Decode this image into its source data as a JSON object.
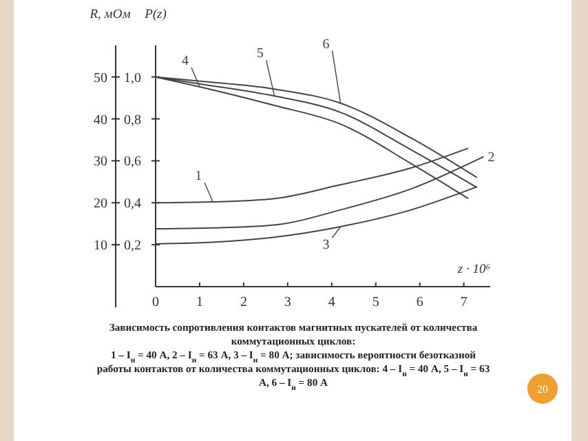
{
  "chart_data": {
    "type": "line",
    "title": "Зависимость сопротивления контактов магнитных пускателей от количества коммутационных циклов:",
    "annotations": [
      "1 – I$_{н}$ = 40 А, 2 – I$_{н}$ = 63 А, 3 – I$_{н}$ = 80 А; зависимость вероятности безотказной работы контактов от количества коммутационных циклов: 4 – I$_{н}$ = 40 А, 5 – I$_{н}$ = 63 А, 6 – I$_{н}$ = 80 А",
      "20"
    ],
    "xlabel": "z · 10⁶",
    "ylabel": "P(z)",
    "y2label": "R, мОм",
    "xlim": [
      0,
      7.6
    ],
    "xticks": [
      0,
      1,
      2,
      3,
      4,
      5,
      6,
      7
    ],
    "ylim": [
      0,
      1.15
    ],
    "yticks": [
      {
        "value": 0.2,
        "label": "0,2"
      },
      {
        "value": 0.4,
        "label": "0,4"
      },
      {
        "value": 0.6,
        "label": "0,6"
      },
      {
        "value": 0.8,
        "label": "0,8"
      },
      {
        "value": 1.0,
        "label": "1,0"
      }
    ],
    "y2lim": [
      0,
      57.5
    ],
    "y2ticks": [
      10,
      20,
      30,
      40,
      50
    ],
    "grid": false,
    "marker": "none",
    "line_style": "solid",
    "series": [
      {
        "name": "1",
        "color": "#444444",
        "axis": "y2",
        "x": [
          0,
          1.3,
          2.7,
          4.2,
          5.8,
          7.1
        ],
        "values": [
          20,
          20.2,
          21,
          24.3,
          28.3,
          33
        ]
      },
      {
        "name": "2",
        "color": "#444444",
        "axis": "y2",
        "x": [
          0,
          1.3,
          2.7,
          4.2,
          5.8,
          7.45
        ],
        "values": [
          13.8,
          14,
          14.7,
          18.3,
          23.3,
          31
        ]
      },
      {
        "name": "3",
        "color": "#444444",
        "axis": "y2",
        "x": [
          0,
          1.3,
          2.7,
          4.2,
          5.8,
          7.3
        ],
        "values": [
          10.2,
          10.6,
          11.8,
          14.3,
          18.3,
          23.8
        ]
      },
      {
        "name": "4",
        "color": "#444444",
        "axis": "y",
        "x": [
          0,
          1,
          2.7,
          4.2,
          5.8,
          7.1
        ],
        "values": [
          1.0,
          0.953,
          0.864,
          0.775,
          0.587,
          0.42
        ]
      },
      {
        "name": "5",
        "color": "#444444",
        "axis": "y",
        "x": [
          0,
          1,
          2.7,
          4.2,
          5.8,
          7.3
        ],
        "values": [
          1.0,
          0.967,
          0.909,
          0.831,
          0.653,
          0.473
        ]
      },
      {
        "name": "6",
        "color": "#444444",
        "axis": "y",
        "x": [
          0,
          1,
          2.7,
          4.2,
          5.8,
          7.3
        ],
        "values": [
          1.0,
          0.98,
          0.942,
          0.875,
          0.709,
          0.52
        ]
      }
    ]
  }
}
